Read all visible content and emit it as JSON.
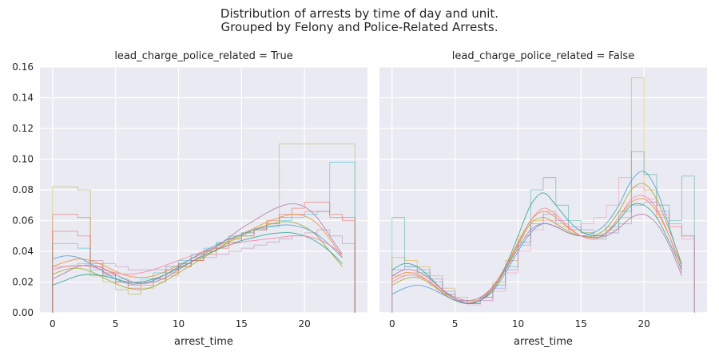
{
  "figure": {
    "title_line1": "Distribution of arrests by time of day and unit.",
    "title_line2": "Grouped by Felony and Police-Related Arrests."
  },
  "chart_data": [
    {
      "type": "area",
      "title": "lead_charge_police_related = True",
      "xlabel": "arrest_time",
      "ylabel": "",
      "xlim": [
        -1,
        25
      ],
      "ylim": [
        0,
        0.16
      ],
      "xticks": [
        0,
        5,
        10,
        15,
        20
      ],
      "yticks": [
        0.0,
        0.02,
        0.04,
        0.06,
        0.08,
        0.1,
        0.12,
        0.14,
        0.16
      ],
      "grid": true,
      "note": "Many overlapping per-unit step histograms (hours 0-23) with KDE curves; representative series estimated.",
      "series": [
        {
          "values": [
            0.064,
            0.064,
            0.062,
            0.03,
            0.025,
            0.02,
            0.018,
            0.02,
            0.022,
            0.028,
            0.032,
            0.036,
            0.04,
            0.045,
            0.048,
            0.052,
            0.055,
            0.06,
            0.064,
            0.068,
            0.072,
            0.072,
            0.062,
            0.06
          ]
        },
        {
          "values": [
            0.082,
            0.082,
            0.08,
            0.024,
            0.02,
            0.015,
            0.012,
            0.016,
            0.02,
            0.024,
            0.03,
            0.034,
            0.04,
            0.044,
            0.048,
            0.05,
            0.054,
            0.058,
            0.11,
            0.11,
            0.11,
            0.11,
            0.11,
            0.11
          ]
        },
        {
          "values": [
            0.045,
            0.045,
            0.042,
            0.028,
            0.024,
            0.022,
            0.02,
            0.022,
            0.026,
            0.03,
            0.034,
            0.038,
            0.042,
            0.046,
            0.05,
            0.052,
            0.054,
            0.056,
            0.06,
            0.062,
            0.064,
            0.066,
            0.098,
            0.098
          ]
        },
        {
          "values": [
            0.03,
            0.03,
            0.032,
            0.034,
            0.032,
            0.03,
            0.028,
            0.028,
            0.028,
            0.03,
            0.032,
            0.034,
            0.036,
            0.038,
            0.04,
            0.042,
            0.044,
            0.046,
            0.048,
            0.05,
            0.052,
            0.054,
            0.05,
            0.045
          ]
        },
        {
          "values": [
            0.053,
            0.053,
            0.05,
            0.032,
            0.026,
            0.02,
            0.016,
            0.018,
            0.022,
            0.026,
            0.03,
            0.034,
            0.038,
            0.042,
            0.046,
            0.05,
            0.054,
            0.058,
            0.062,
            0.064,
            0.066,
            0.066,
            0.064,
            0.062
          ]
        }
      ],
      "kde_series": [
        {
          "values": [
            0.03,
            0.033,
            0.035,
            0.034,
            0.031,
            0.027,
            0.024,
            0.023,
            0.024,
            0.027,
            0.031,
            0.035,
            0.039,
            0.043,
            0.047,
            0.051,
            0.055,
            0.059,
            0.062,
            0.064,
            0.063,
            0.058,
            0.048,
            0.036
          ]
        },
        {
          "values": [
            0.025,
            0.028,
            0.029,
            0.027,
            0.023,
            0.019,
            0.016,
            0.015,
            0.017,
            0.021,
            0.026,
            0.031,
            0.036,
            0.041,
            0.046,
            0.05,
            0.054,
            0.057,
            0.059,
            0.059,
            0.056,
            0.05,
            0.04,
            0.03
          ]
        },
        {
          "values": [
            0.018,
            0.021,
            0.024,
            0.025,
            0.024,
            0.022,
            0.02,
            0.02,
            0.022,
            0.025,
            0.029,
            0.033,
            0.037,
            0.041,
            0.044,
            0.047,
            0.049,
            0.051,
            0.052,
            0.052,
            0.05,
            0.046,
            0.04,
            0.032
          ]
        },
        {
          "values": [
            0.035,
            0.037,
            0.036,
            0.032,
            0.027,
            0.022,
            0.019,
            0.019,
            0.021,
            0.025,
            0.03,
            0.035,
            0.04,
            0.044,
            0.048,
            0.051,
            0.054,
            0.056,
            0.057,
            0.057,
            0.055,
            0.051,
            0.044,
            0.036
          ]
        },
        {
          "values": [
            0.022,
            0.026,
            0.03,
            0.031,
            0.029,
            0.025,
            0.021,
            0.019,
            0.02,
            0.023,
            0.028,
            0.033,
            0.038,
            0.043,
            0.049,
            0.055,
            0.06,
            0.065,
            0.069,
            0.071,
            0.069,
            0.062,
            0.05,
            0.038
          ]
        },
        {
          "values": [
            0.028,
            0.03,
            0.031,
            0.03,
            0.028,
            0.026,
            0.025,
            0.026,
            0.028,
            0.031,
            0.034,
            0.037,
            0.04,
            0.042,
            0.044,
            0.046,
            0.047,
            0.048,
            0.049,
            0.05,
            0.05,
            0.048,
            0.044,
            0.038
          ]
        }
      ]
    },
    {
      "type": "area",
      "title": "lead_charge_police_related = False",
      "xlabel": "arrest_time",
      "ylabel": "",
      "xlim": [
        -1,
        25
      ],
      "ylim": [
        0,
        0.16
      ],
      "xticks": [
        0,
        5,
        10,
        15,
        20
      ],
      "yticks": [
        0.0,
        0.02,
        0.04,
        0.06,
        0.08,
        0.1,
        0.12,
        0.14,
        0.16
      ],
      "grid": true,
      "note": "Many overlapping per-unit step histograms (hours 0-23) with KDE curves; representative series estimated.",
      "series": [
        {
          "values": [
            0.036,
            0.034,
            0.03,
            0.024,
            0.016,
            0.01,
            0.008,
            0.01,
            0.02,
            0.034,
            0.05,
            0.06,
            0.066,
            0.058,
            0.054,
            0.052,
            0.05,
            0.054,
            0.062,
            0.153,
            0.08,
            0.062,
            0.056,
            0.05
          ]
        },
        {
          "values": [
            0.062,
            0.03,
            0.026,
            0.02,
            0.012,
            0.008,
            0.006,
            0.01,
            0.018,
            0.03,
            0.046,
            0.08,
            0.088,
            0.07,
            0.06,
            0.052,
            0.048,
            0.056,
            0.066,
            0.105,
            0.09,
            0.07,
            0.06,
            0.089
          ]
        },
        {
          "values": [
            0.028,
            0.03,
            0.028,
            0.022,
            0.014,
            0.008,
            0.006,
            0.008,
            0.016,
            0.028,
            0.044,
            0.058,
            0.064,
            0.06,
            0.056,
            0.054,
            0.05,
            0.052,
            0.058,
            0.07,
            0.072,
            0.066,
            0.058,
            0.05
          ]
        },
        {
          "values": [
            0.024,
            0.026,
            0.024,
            0.018,
            0.012,
            0.008,
            0.005,
            0.008,
            0.014,
            0.026,
            0.04,
            0.054,
            0.06,
            0.056,
            0.054,
            0.058,
            0.062,
            0.07,
            0.088,
            0.082,
            0.074,
            0.064,
            0.056,
            0.048
          ]
        }
      ],
      "kde_series": [
        {
          "values": [
            0.022,
            0.026,
            0.025,
            0.02,
            0.013,
            0.008,
            0.006,
            0.009,
            0.017,
            0.03,
            0.046,
            0.06,
            0.066,
            0.062,
            0.055,
            0.05,
            0.048,
            0.052,
            0.062,
            0.072,
            0.074,
            0.066,
            0.05,
            0.03
          ]
        },
        {
          "values": [
            0.018,
            0.022,
            0.023,
            0.019,
            0.013,
            0.008,
            0.006,
            0.008,
            0.015,
            0.028,
            0.044,
            0.058,
            0.062,
            0.058,
            0.053,
            0.05,
            0.05,
            0.055,
            0.066,
            0.08,
            0.084,
            0.074,
            0.054,
            0.032
          ]
        },
        {
          "values": [
            0.028,
            0.032,
            0.03,
            0.023,
            0.015,
            0.009,
            0.006,
            0.008,
            0.016,
            0.03,
            0.05,
            0.07,
            0.078,
            0.07,
            0.06,
            0.053,
            0.05,
            0.052,
            0.06,
            0.07,
            0.07,
            0.062,
            0.046,
            0.028
          ]
        },
        {
          "values": [
            0.012,
            0.016,
            0.018,
            0.016,
            0.012,
            0.008,
            0.006,
            0.008,
            0.014,
            0.026,
            0.04,
            0.052,
            0.058,
            0.056,
            0.052,
            0.05,
            0.052,
            0.058,
            0.07,
            0.086,
            0.092,
            0.08,
            0.056,
            0.03
          ]
        },
        {
          "values": [
            0.024,
            0.028,
            0.027,
            0.022,
            0.015,
            0.01,
            0.008,
            0.01,
            0.017,
            0.028,
            0.042,
            0.054,
            0.058,
            0.056,
            0.052,
            0.05,
            0.049,
            0.05,
            0.055,
            0.062,
            0.064,
            0.058,
            0.044,
            0.024
          ]
        },
        {
          "values": [
            0.02,
            0.024,
            0.024,
            0.02,
            0.014,
            0.009,
            0.007,
            0.009,
            0.016,
            0.029,
            0.045,
            0.06,
            0.068,
            0.064,
            0.056,
            0.05,
            0.048,
            0.052,
            0.062,
            0.074,
            0.076,
            0.068,
            0.05,
            0.026
          ]
        }
      ]
    }
  ],
  "palette": [
    "#e84a3d",
    "#f28e2b",
    "#d4a017",
    "#a3a82e",
    "#59a14f",
    "#2ca58d",
    "#17becf",
    "#4e9fd6",
    "#7b7fe0",
    "#b07aa1",
    "#e377c2",
    "#ff7f9f"
  ]
}
